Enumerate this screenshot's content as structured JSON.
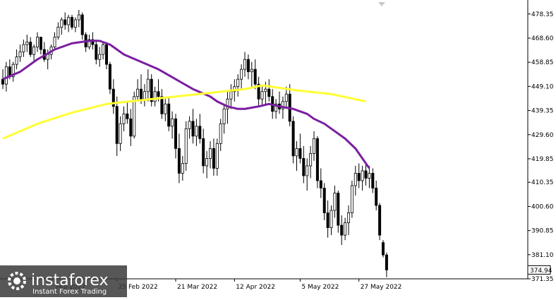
{
  "chart_data": {
    "type": "candlestick",
    "y_range": [
      371.35,
      484.0
    ],
    "y_ticks": [
      478.35,
      468.6,
      458.85,
      449.1,
      439.35,
      429.6,
      419.85,
      410.35,
      400.6,
      390.85,
      381.1,
      371.35
    ],
    "y_tick_labels": [
      "478.35",
      "468.60",
      "458.85",
      "449.10",
      "439.35",
      "429.60",
      "419.85",
      "410.35",
      "400.60",
      "390.85",
      "381.10",
      "371.35"
    ],
    "current_price": 374.94,
    "current_price_label": "374.94",
    "x_date_labels": [
      "Feb 2022",
      "25 Feb 2022",
      "21 Mar 2022",
      "12 Apr 2022",
      "5 May 2022",
      "27 May 2022"
    ],
    "x_date_label_at": [
      15,
      33,
      50,
      67,
      86,
      103
    ],
    "grid": false,
    "series": [
      {
        "style": "candles",
        "up_color": "#000000",
        "down_color": "#000000",
        "ohlc": [
          [
            452,
            456,
            448,
            450
          ],
          [
            450,
            459,
            447,
            457
          ],
          [
            457,
            460,
            452,
            453
          ],
          [
            453,
            459,
            451,
            458
          ],
          [
            458,
            464,
            456,
            461
          ],
          [
            461,
            466,
            459,
            463
          ],
          [
            463,
            468,
            461,
            466
          ],
          [
            466,
            470,
            463,
            467
          ],
          [
            467,
            469,
            461,
            462
          ],
          [
            462,
            466,
            459,
            465
          ],
          [
            465,
            471,
            463,
            469
          ],
          [
            469,
            469,
            462,
            464
          ],
          [
            464,
            467,
            459,
            460
          ],
          [
            460,
            464,
            456,
            462
          ],
          [
            462,
            466,
            460,
            465
          ],
          [
            465,
            471,
            464,
            469
          ],
          [
            469,
            475,
            468,
            473
          ],
          [
            473,
            477,
            470,
            476
          ],
          [
            476,
            479,
            472,
            474
          ],
          [
            474,
            478,
            471,
            477
          ],
          [
            477,
            478,
            472,
            473
          ],
          [
            473,
            477,
            471,
            476
          ],
          [
            476,
            480,
            473,
            478
          ],
          [
            478,
            479,
            468,
            470
          ],
          [
            470,
            471,
            463,
            465
          ],
          [
            465,
            470,
            464,
            468
          ],
          [
            468,
            471,
            464,
            466
          ],
          [
            466,
            468,
            458,
            460
          ],
          [
            460,
            465,
            457,
            462
          ],
          [
            462,
            467,
            460,
            466
          ],
          [
            466,
            467,
            456,
            458
          ],
          [
            458,
            459,
            446,
            448
          ],
          [
            448,
            452,
            438,
            441
          ],
          [
            441,
            445,
            421,
            426
          ],
          [
            426,
            437,
            423,
            434
          ],
          [
            434,
            441,
            431,
            438
          ],
          [
            438,
            443,
            434,
            436
          ],
          [
            436,
            440,
            425,
            429
          ],
          [
            429,
            447,
            428,
            445
          ],
          [
            445,
            452,
            443,
            448
          ],
          [
            448,
            454,
            442,
            444
          ],
          [
            444,
            450,
            441,
            447
          ],
          [
            447,
            456,
            443,
            452
          ],
          [
            452,
            454,
            441,
            443
          ],
          [
            443,
            449,
            441,
            447
          ],
          [
            447,
            452,
            443,
            445
          ],
          [
            445,
            448,
            436,
            438
          ],
          [
            438,
            444,
            435,
            442
          ],
          [
            442,
            445,
            431,
            433
          ],
          [
            433,
            439,
            428,
            436
          ],
          [
            436,
            438,
            420,
            424
          ],
          [
            424,
            430,
            410,
            414
          ],
          [
            414,
            421,
            411,
            418
          ],
          [
            418,
            435,
            415,
            432
          ],
          [
            432,
            437,
            428,
            435
          ],
          [
            435,
            440,
            426,
            429
          ],
          [
            429,
            436,
            425,
            433
          ],
          [
            433,
            438,
            426,
            428
          ],
          [
            428,
            432,
            414,
            417
          ],
          [
            417,
            423,
            412,
            420
          ],
          [
            420,
            427,
            416,
            424
          ],
          [
            424,
            428,
            413,
            416
          ],
          [
            416,
            428,
            413,
            426
          ],
          [
            426,
            436,
            423,
            434
          ],
          [
            434,
            442,
            430,
            440
          ],
          [
            440,
            447,
            434,
            444
          ],
          [
            444,
            450,
            440,
            447
          ],
          [
            447,
            452,
            443,
            449
          ],
          [
            449,
            454,
            445,
            452
          ],
          [
            452,
            458,
            448,
            456
          ],
          [
            456,
            463,
            453,
            460
          ],
          [
            460,
            462,
            452,
            455
          ],
          [
            455,
            459,
            449,
            456
          ],
          [
            456,
            460,
            448,
            450
          ],
          [
            450,
            453,
            441,
            444
          ],
          [
            444,
            449,
            441,
            447
          ],
          [
            447,
            451,
            442,
            448
          ],
          [
            448,
            452,
            443,
            445
          ],
          [
            445,
            448,
            436,
            439
          ],
          [
            439,
            444,
            436,
            442
          ],
          [
            442,
            447,
            438,
            440
          ],
          [
            440,
            445,
            436,
            443
          ],
          [
            443,
            449,
            440,
            446
          ],
          [
            446,
            450,
            433,
            435
          ],
          [
            435,
            437,
            418,
            421
          ],
          [
            421,
            427,
            415,
            424
          ],
          [
            424,
            430,
            418,
            420
          ],
          [
            420,
            425,
            410,
            413
          ],
          [
            413,
            420,
            407,
            417
          ],
          [
            417,
            425,
            412,
            422
          ],
          [
            422,
            431,
            419,
            428
          ],
          [
            428,
            429,
            408,
            411
          ],
          [
            411,
            416,
            404,
            408
          ],
          [
            408,
            410,
            395,
            398
          ],
          [
            398,
            403,
            388,
            392
          ],
          [
            392,
            401,
            389,
            399
          ],
          [
            399,
            409,
            396,
            406
          ],
          [
            406,
            407,
            390,
            393
          ],
          [
            393,
            397,
            385,
            389
          ],
          [
            389,
            396,
            387,
            394
          ],
          [
            394,
            401,
            389,
            398
          ],
          [
            398,
            411,
            396,
            409
          ],
          [
            409,
            417,
            405,
            414
          ],
          [
            414,
            418,
            408,
            411
          ],
          [
            411,
            417,
            407,
            415
          ],
          [
            415,
            418,
            409,
            412
          ],
          [
            412,
            417,
            408,
            414
          ],
          [
            414,
            416,
            406,
            408
          ],
          [
            408,
            411,
            399,
            401
          ],
          [
            401,
            402,
            387,
            389
          ],
          [
            386,
            387,
            380,
            381
          ],
          [
            381,
            382,
            372,
            374.94
          ]
        ]
      },
      {
        "style": "line",
        "color": "#7a1fa2",
        "values": [
          [
            0,
            452
          ],
          [
            5,
            455
          ],
          [
            10,
            460
          ],
          [
            15,
            464
          ],
          [
            20,
            466.5
          ],
          [
            25,
            467.5
          ],
          [
            28,
            467.5
          ],
          [
            31,
            466
          ],
          [
            35,
            462
          ],
          [
            40,
            459
          ],
          [
            45,
            456
          ],
          [
            50,
            452
          ],
          [
            55,
            448
          ],
          [
            60,
            445
          ],
          [
            62,
            443
          ],
          [
            65,
            441
          ],
          [
            68,
            440
          ],
          [
            70,
            440
          ],
          [
            74,
            441
          ],
          [
            77,
            442
          ],
          [
            80,
            441
          ],
          [
            84,
            440
          ],
          [
            88,
            438
          ],
          [
            90,
            436
          ],
          [
            93,
            434
          ],
          [
            96,
            431
          ],
          [
            99,
            428
          ],
          [
            102,
            424
          ],
          [
            104,
            420
          ],
          [
            106,
            416
          ]
        ]
      },
      {
        "style": "line",
        "color": "#ffff33",
        "values": [
          [
            0,
            428
          ],
          [
            10,
            434
          ],
          [
            20,
            438.5
          ],
          [
            30,
            442
          ],
          [
            40,
            443.5
          ],
          [
            50,
            445
          ],
          [
            60,
            446.5
          ],
          [
            70,
            448
          ],
          [
            75,
            449.5
          ],
          [
            80,
            448.5
          ],
          [
            85,
            447.5
          ],
          [
            95,
            446
          ],
          [
            105,
            443
          ]
        ]
      }
    ]
  },
  "watermark": {
    "brand": "instaforex",
    "tagline": "Instant Forex Trading"
  },
  "colors": {
    "background": "#ffffff",
    "axis": "#000000",
    "ma_fast": "#7a1fa2",
    "ma_slow": "#ffff33",
    "watermark_bg": "#3a3a3a"
  }
}
